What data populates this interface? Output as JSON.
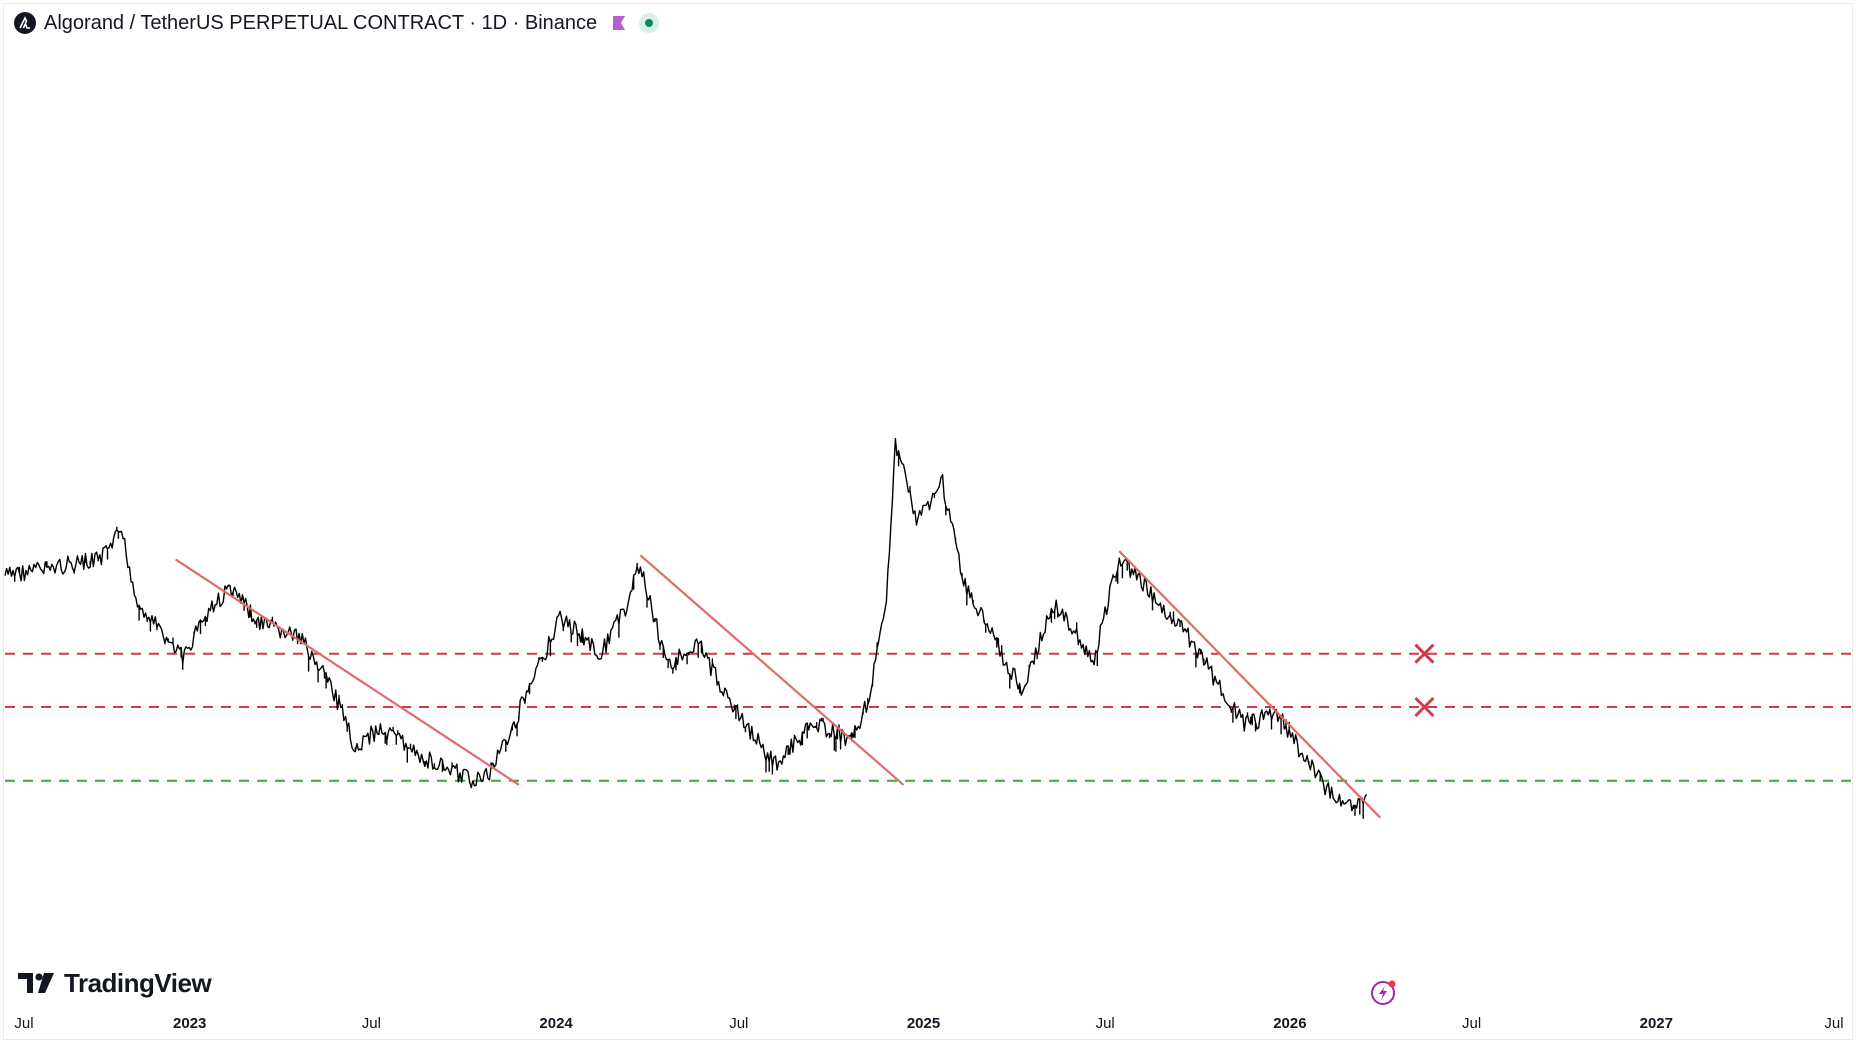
{
  "header": {
    "title": "Algorand / TetherUS PERPETUAL CONTRACT · 1D · Binance",
    "icons": [
      "algorand-logo-icon",
      "flag-icon",
      "market-open-status-icon"
    ],
    "status_color": "#0b8a5c",
    "flag_color": "#b35fcf"
  },
  "branding": {
    "logo_text": "TradingView"
  },
  "x_axis": {
    "ticks": [
      {
        "label": "Jul",
        "bold": false
      },
      {
        "label": "2023",
        "bold": true
      },
      {
        "label": "Jul",
        "bold": false
      },
      {
        "label": "2024",
        "bold": true
      },
      {
        "label": "Jul",
        "bold": false
      },
      {
        "label": "2025",
        "bold": true
      },
      {
        "label": "Jul",
        "bold": false
      },
      {
        "label": "2026",
        "bold": true
      },
      {
        "label": "Jul",
        "bold": false
      },
      {
        "label": "2027",
        "bold": true
      },
      {
        "label": "Jul",
        "bold": false
      }
    ]
  },
  "chart_data": {
    "type": "line",
    "description_series": "Daily price (candles)",
    "x_range": [
      "2022-07-01",
      "2027-07-01"
    ],
    "x_is_date": true,
    "y_axis_visible": false,
    "grid": false,
    "colors": {
      "price": "#000000",
      "trendline": "#e06b6b",
      "resistance": "#d23a4a",
      "support": "#3aa83a",
      "cross": "#d23a4a"
    },
    "price_path_relative": [
      [
        "2022-07-01",
        0.62
      ],
      [
        "2022-08-15",
        0.64
      ],
      [
        "2022-10-05",
        0.66
      ],
      [
        "2022-10-25",
        0.73
      ],
      [
        "2022-11-10",
        0.55
      ],
      [
        "2022-12-25",
        0.42
      ],
      [
        "2023-01-15",
        0.52
      ],
      [
        "2023-02-10",
        0.59
      ],
      [
        "2023-03-15",
        0.5
      ],
      [
        "2023-04-20",
        0.47
      ],
      [
        "2023-05-20",
        0.36
      ],
      [
        "2023-06-15",
        0.2
      ],
      [
        "2023-07-10",
        0.25
      ],
      [
        "2023-08-20",
        0.18
      ],
      [
        "2023-10-10",
        0.12
      ],
      [
        "2023-10-25",
        0.13
      ],
      [
        "2023-11-20",
        0.26
      ],
      [
        "2023-12-15",
        0.4
      ],
      [
        "2024-01-05",
        0.52
      ],
      [
        "2024-02-15",
        0.43
      ],
      [
        "2024-03-10",
        0.54
      ],
      [
        "2024-03-25",
        0.65
      ],
      [
        "2024-04-20",
        0.4
      ],
      [
        "2024-05-20",
        0.46
      ],
      [
        "2024-06-25",
        0.3
      ],
      [
        "2024-08-05",
        0.16
      ],
      [
        "2024-09-15",
        0.26
      ],
      [
        "2024-10-20",
        0.22
      ],
      [
        "2024-11-05",
        0.3
      ],
      [
        "2024-11-25",
        0.55
      ],
      [
        "2024-12-04",
        0.95
      ],
      [
        "2024-12-25",
        0.75
      ],
      [
        "2025-01-20",
        0.85
      ],
      [
        "2025-02-10",
        0.6
      ],
      [
        "2025-03-15",
        0.45
      ],
      [
        "2025-04-10",
        0.34
      ],
      [
        "2025-05-10",
        0.55
      ],
      [
        "2025-06-20",
        0.42
      ],
      [
        "2025-07-15",
        0.67
      ],
      [
        "2025-08-25",
        0.55
      ],
      [
        "2025-09-20",
        0.48
      ],
      [
        "2025-10-15",
        0.38
      ],
      [
        "2025-11-15",
        0.26
      ],
      [
        "2025-12-20",
        0.28
      ],
      [
        "2026-01-10",
        0.2
      ],
      [
        "2026-02-10",
        0.09
      ],
      [
        "2026-03-10",
        0.06
      ],
      [
        "2026-03-20",
        0.11
      ]
    ],
    "trendlines": [
      {
        "from": [
          "2022-12-18",
          0.66
        ],
        "to": [
          "2023-11-25",
          0.11
        ]
      },
      {
        "from": [
          "2024-03-25",
          0.67
        ],
        "to": [
          "2024-12-12",
          0.11
        ]
      },
      {
        "from": [
          "2025-07-15",
          0.68
        ],
        "to": [
          "2026-04-01",
          0.03
        ]
      }
    ],
    "horizontal_levels": [
      {
        "kind": "resistance",
        "style": "dashed",
        "y_relative": 0.43
      },
      {
        "kind": "resistance",
        "style": "dashed",
        "y_relative": 0.3
      },
      {
        "kind": "support",
        "style": "dashed",
        "y_relative": 0.12
      }
    ],
    "markers": [
      {
        "shape": "x",
        "date": "2026-05-15",
        "level": 0
      },
      {
        "shape": "x",
        "date": "2026-05-15",
        "level": 1
      }
    ]
  }
}
